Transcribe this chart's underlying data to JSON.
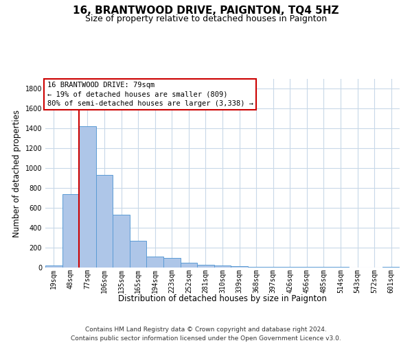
{
  "title": "16, BRANTWOOD DRIVE, PAIGNTON, TQ4 5HZ",
  "subtitle": "Size of property relative to detached houses in Paignton",
  "xlabel": "Distribution of detached houses by size in Paignton",
  "ylabel": "Number of detached properties",
  "categories": [
    "19sqm",
    "48sqm",
    "77sqm",
    "106sqm",
    "135sqm",
    "165sqm",
    "194sqm",
    "223sqm",
    "252sqm",
    "281sqm",
    "310sqm",
    "339sqm",
    "368sqm",
    "397sqm",
    "426sqm",
    "456sqm",
    "485sqm",
    "514sqm",
    "543sqm",
    "572sqm",
    "601sqm"
  ],
  "values": [
    20,
    740,
    1420,
    935,
    530,
    270,
    110,
    100,
    50,
    30,
    20,
    15,
    10,
    10,
    5,
    5,
    5,
    5,
    0,
    0,
    5
  ],
  "bar_color": "#aec6e8",
  "bar_edge_color": "#5b9bd5",
  "vline_index": 2,
  "vline_color": "#cc0000",
  "annotation_line1": "16 BRANTWOOD DRIVE: 79sqm",
  "annotation_line2": "← 19% of detached houses are smaller (809)",
  "annotation_line3": "80% of semi-detached houses are larger (3,338) →",
  "annotation_box_facecolor": "#ffffff",
  "annotation_box_edgecolor": "#cc0000",
  "footnote_line1": "Contains HM Land Registry data © Crown copyright and database right 2024.",
  "footnote_line2": "Contains public sector information licensed under the Open Government Licence v3.0.",
  "ylim": [
    0,
    1900
  ],
  "yticks": [
    0,
    200,
    400,
    600,
    800,
    1000,
    1200,
    1400,
    1600,
    1800
  ],
  "bg_color": "#ffffff",
  "grid_color": "#c8d8e8",
  "title_fontsize": 11,
  "subtitle_fontsize": 9,
  "xlabel_fontsize": 8.5,
  "ylabel_fontsize": 8.5,
  "tick_fontsize": 7,
  "annotation_fontsize": 7.5,
  "footnote_fontsize": 6.5
}
